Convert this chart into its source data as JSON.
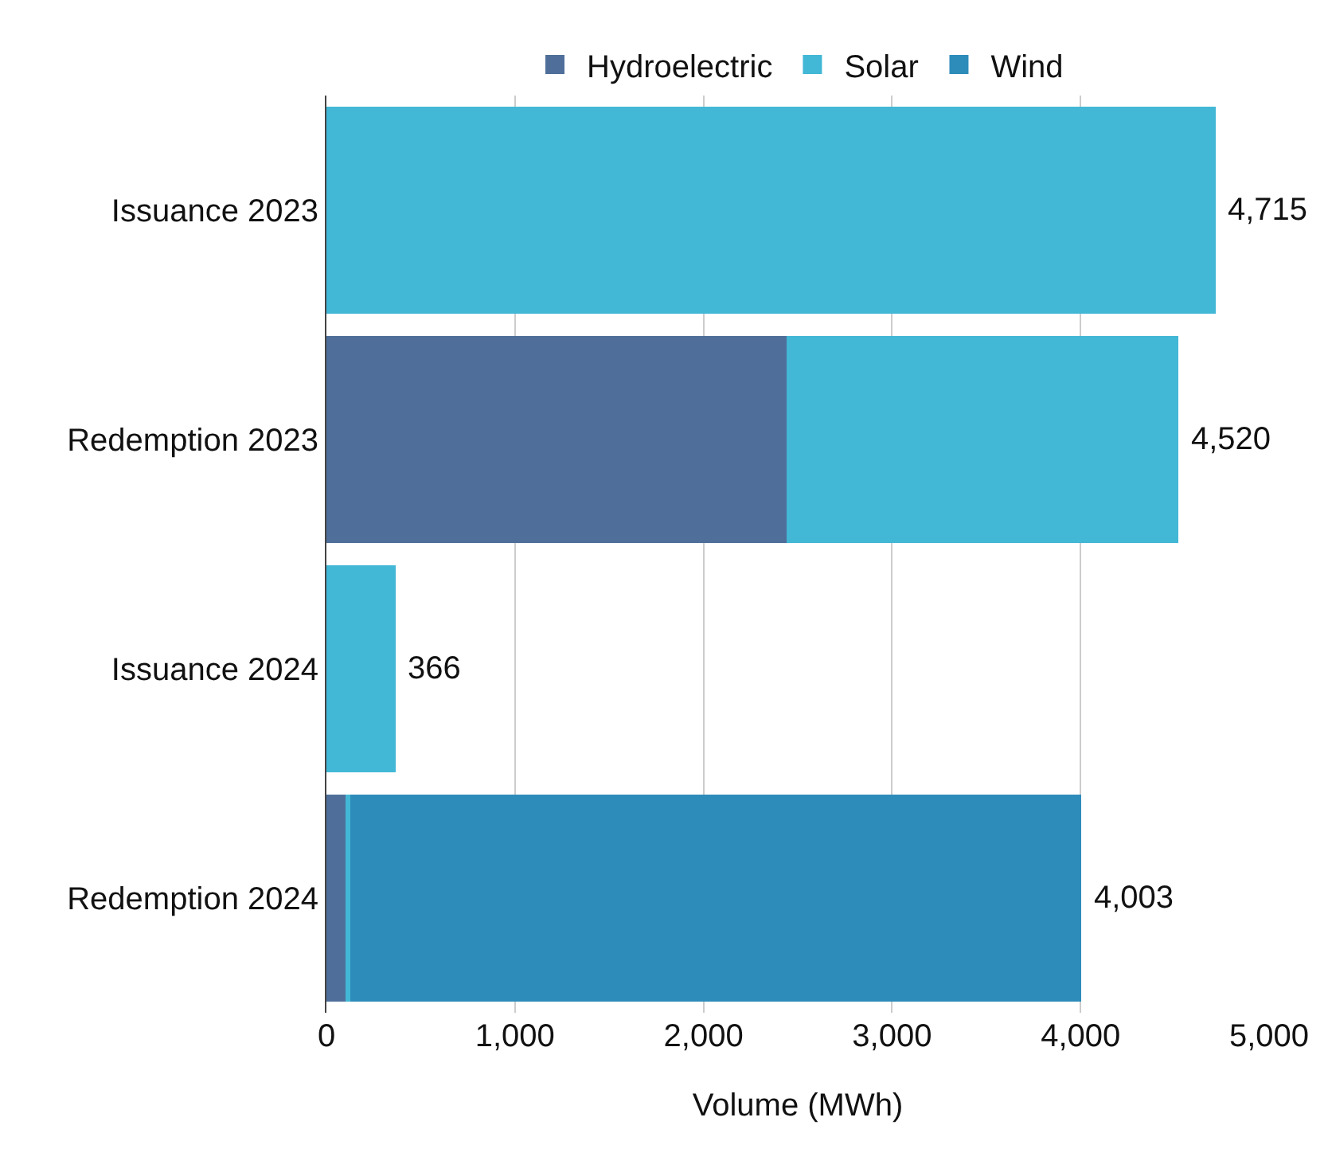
{
  "chart_data": {
    "type": "bar",
    "orientation": "horizontal",
    "stacked": true,
    "xlabel": "Volume (MWh)",
    "categories": [
      "Issuance 2023",
      "Redemption 2023",
      "Issuance 2024",
      "Redemption 2024"
    ],
    "series": [
      {
        "name": "Hydroelectric",
        "color": "#4f6f9a",
        "values": [
          null,
          2440,
          null,
          100
        ]
      },
      {
        "name": "Solar",
        "color": "#42b7d6",
        "values": [
          4715,
          2080,
          366,
          25
        ]
      },
      {
        "name": "Wind",
        "color": "#2e8cba",
        "values": [
          null,
          null,
          null,
          3878
        ]
      }
    ],
    "totals": [
      "4,715",
      "4,520",
      "366",
      "4,003"
    ],
    "xlim": [
      0,
      5000
    ],
    "xticks": [
      {
        "value": 0,
        "label": "0"
      },
      {
        "value": 1000,
        "label": "1,000"
      },
      {
        "value": 2000,
        "label": "2,000"
      },
      {
        "value": 3000,
        "label": "3,000"
      },
      {
        "value": 4000,
        "label": "4,000"
      },
      {
        "value": 5000,
        "label": "5,000"
      }
    ],
    "grid": "x",
    "legend": "top"
  }
}
